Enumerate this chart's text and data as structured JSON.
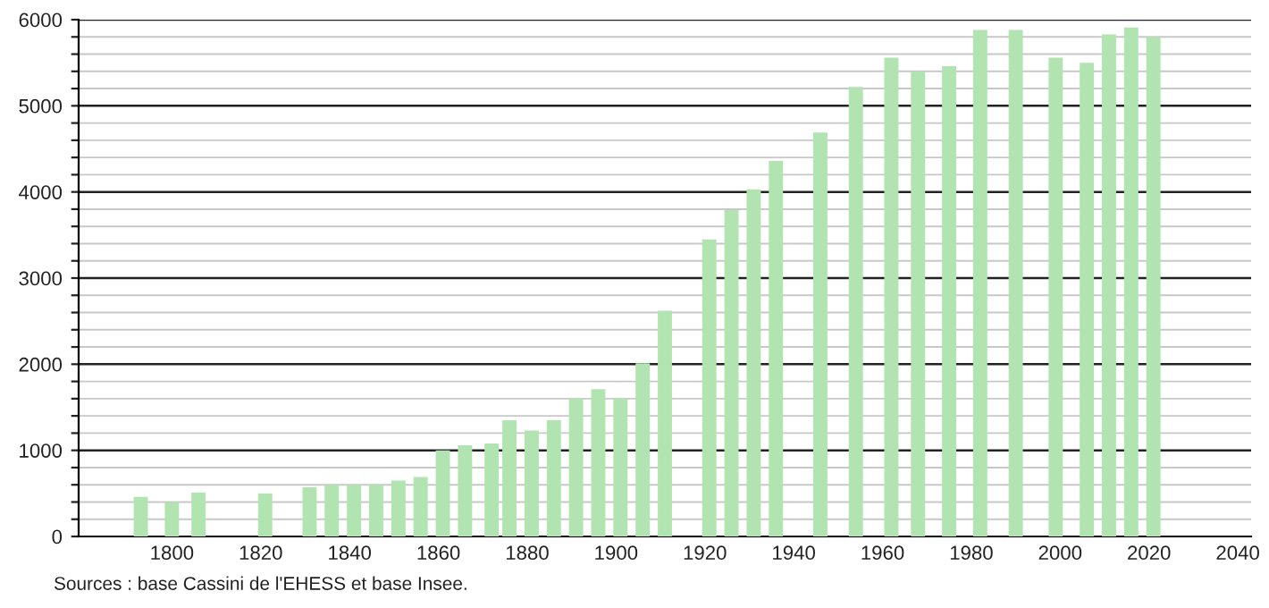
{
  "chart_data": {
    "type": "bar",
    "x": [
      1793,
      1800,
      1806,
      1821,
      1831,
      1836,
      1841,
      1846,
      1851,
      1856,
      1861,
      1866,
      1872,
      1876,
      1881,
      1886,
      1891,
      1896,
      1901,
      1906,
      1911,
      1921,
      1926,
      1931,
      1936,
      1946,
      1954,
      1962,
      1968,
      1975,
      1982,
      1990,
      1999,
      2006,
      2011,
      2016,
      2021
    ],
    "values": [
      460,
      400,
      510,
      500,
      570,
      600,
      600,
      600,
      650,
      690,
      1000,
      1060,
      1080,
      1350,
      1230,
      1350,
      1600,
      1710,
      1600,
      2010,
      2620,
      3450,
      3790,
      4030,
      4360,
      4690,
      5220,
      5560,
      5400,
      5460,
      5880,
      5880,
      5560,
      5500,
      5830,
      5910,
      5800
    ],
    "color": "#b2e4b2",
    "xlim": [
      1779,
      2043
    ],
    "xticks": [
      1800,
      1820,
      1840,
      1860,
      1880,
      1900,
      1920,
      1940,
      1960,
      1980,
      2000,
      2020,
      2040
    ],
    "ylim": [
      0,
      6000
    ],
    "yticks": [
      0,
      {
        "value": 200,
        "label": null
      },
      {
        "value": 400,
        "label": null
      },
      {
        "value": 600,
        "label": null
      },
      {
        "value": 800,
        "label": null
      },
      1000,
      {
        "value": 1200,
        "label": null
      },
      {
        "value": 1400,
        "label": null
      },
      {
        "value": 1600,
        "label": null
      },
      {
        "value": 1800,
        "label": null
      },
      2000,
      {
        "value": 2200,
        "label": null
      },
      {
        "value": 2400,
        "label": null
      },
      {
        "value": 2600,
        "label": null
      },
      {
        "value": 2800,
        "label": null
      },
      3000,
      {
        "value": 3200,
        "label": null
      },
      {
        "value": 3400,
        "label": null
      },
      {
        "value": 3600,
        "label": null
      },
      {
        "value": 3800,
        "label": null
      },
      4000,
      {
        "value": 4200,
        "label": null
      },
      {
        "value": 4400,
        "label": null
      },
      {
        "value": 4600,
        "label": null
      },
      {
        "value": 4800,
        "label": null
      },
      5000,
      {
        "value": 5200,
        "label": null
      },
      {
        "value": 5400,
        "label": null
      },
      {
        "value": 5600,
        "label": null
      },
      {
        "value": 5800,
        "label": null
      },
      6000
    ],
    "grid": "y",
    "annotations": [
      "Sources : base Cassini de l'EHESS et base Insee."
    ]
  }
}
